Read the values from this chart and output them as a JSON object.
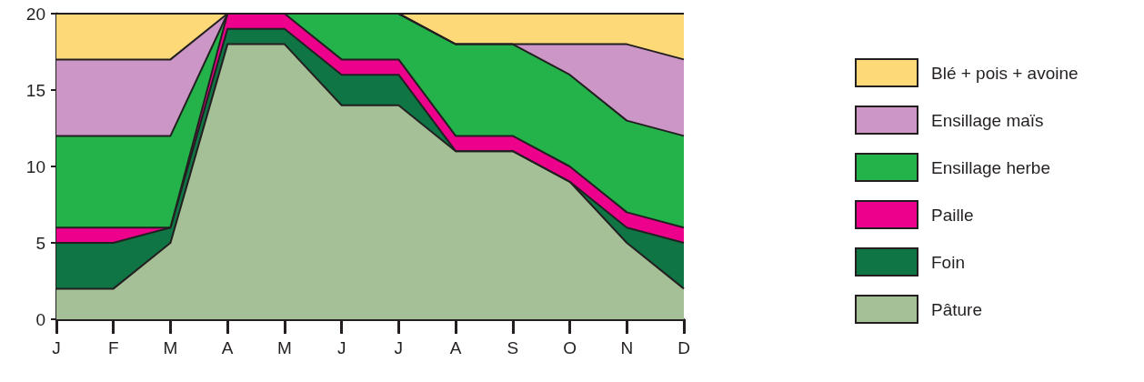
{
  "chart_data": {
    "type": "area",
    "stacked": true,
    "categories": [
      "J",
      "F",
      "M",
      "A",
      "M",
      "J",
      "J",
      "A",
      "S",
      "O",
      "N",
      "D"
    ],
    "series": [
      {
        "name": "Pâture",
        "color": "#a5c096",
        "values": [
          2,
          2,
          5,
          18,
          18,
          14,
          14,
          11,
          11,
          9,
          5,
          2
        ]
      },
      {
        "name": "Foin",
        "color": "#0f7545",
        "values": [
          3,
          3,
          1,
          1,
          1,
          2,
          2,
          0,
          0,
          0,
          1,
          3
        ]
      },
      {
        "name": "Paille",
        "color": "#ec008c",
        "values": [
          1,
          1,
          0,
          1,
          1,
          1,
          1,
          1,
          1,
          1,
          1,
          1
        ]
      },
      {
        "name": "Ensillage herbe",
        "color": "#24b24b",
        "values": [
          6,
          6,
          6,
          0,
          0,
          3,
          3,
          6,
          6,
          6,
          6,
          6
        ]
      },
      {
        "name": "Ensillage maïs",
        "color": "#cc97c6",
        "values": [
          5,
          5,
          5,
          0,
          0,
          0,
          0,
          0,
          0,
          2,
          5,
          5
        ]
      },
      {
        "name": "Blé + pois + avoine",
        "color": "#fdd978",
        "values": [
          3,
          3,
          3,
          0,
          0,
          0,
          0,
          2,
          2,
          2,
          2,
          3
        ]
      }
    ],
    "ylim": [
      0,
      20
    ],
    "yticks": [
      0,
      5,
      10,
      15,
      20
    ],
    "grid": false,
    "legend": "right",
    "marker": "none",
    "line_style": "solid"
  }
}
